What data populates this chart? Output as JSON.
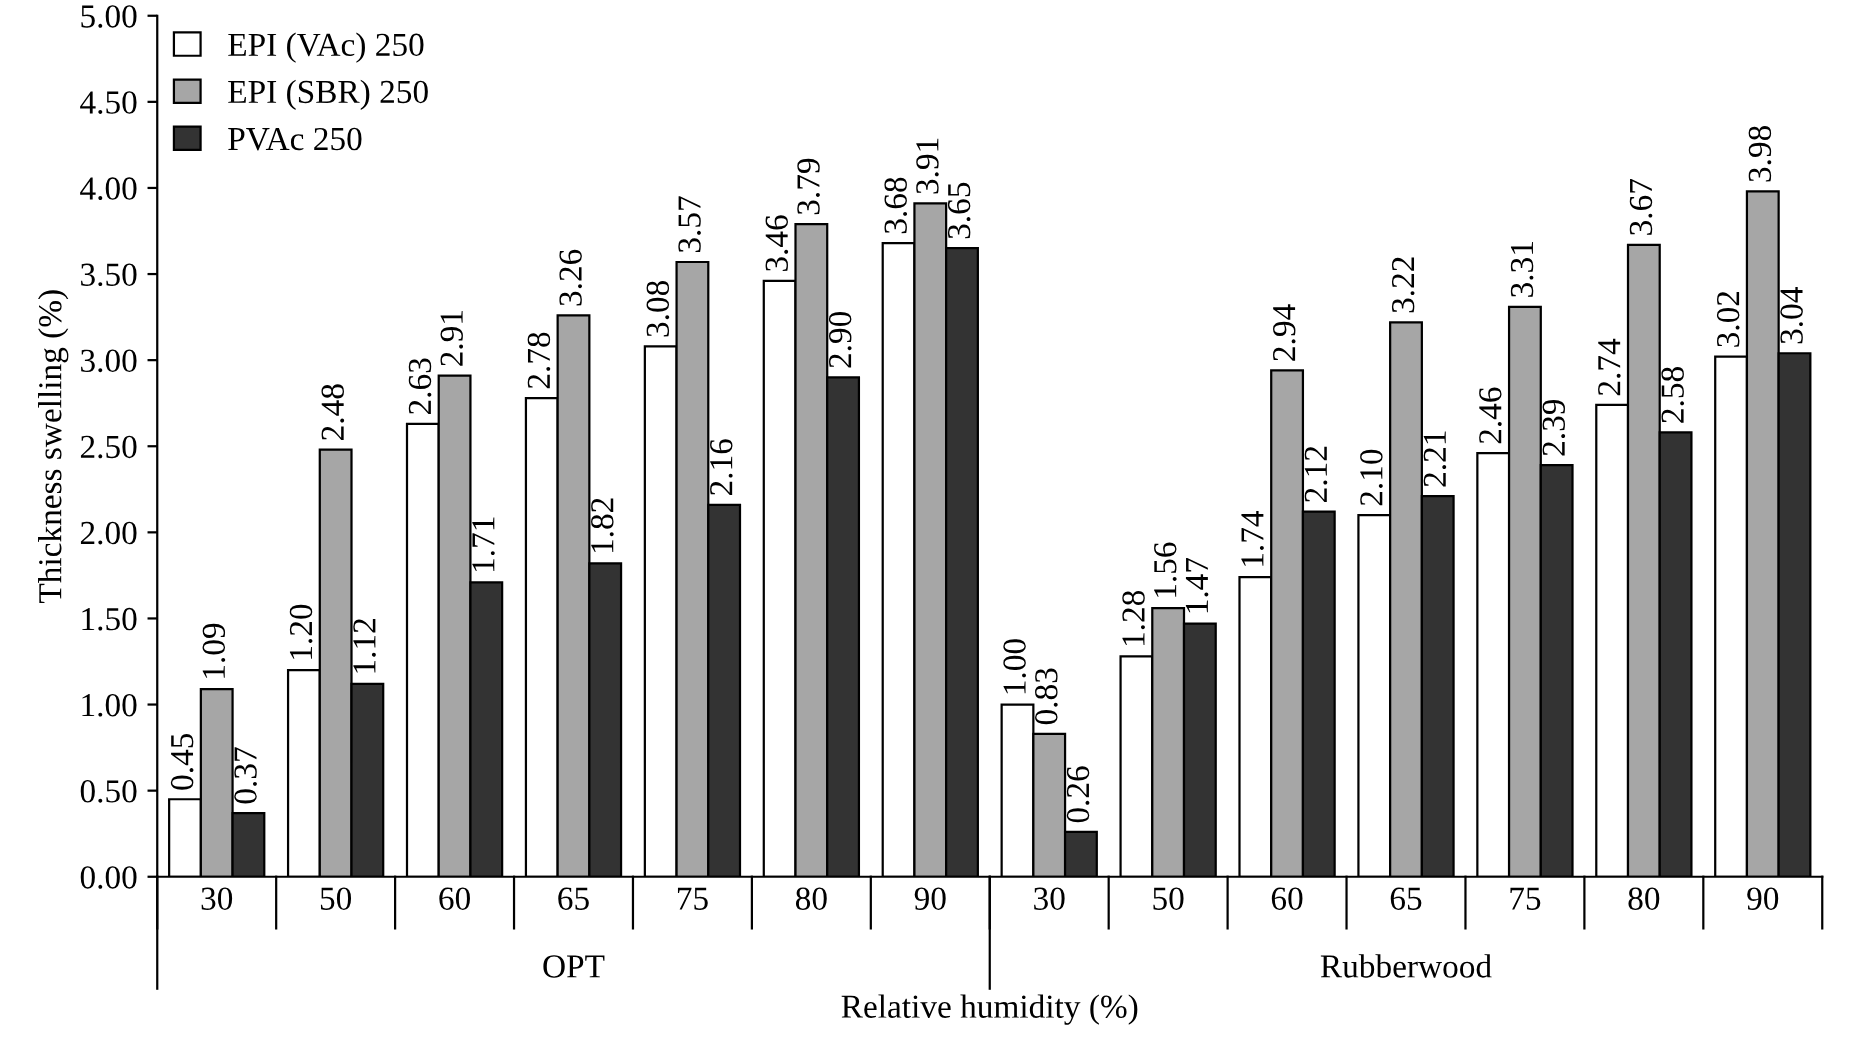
{
  "chart_data": {
    "type": "bar",
    "xlabel": "Relative humidity (%)",
    "ylabel": "Thickness swelling (%)",
    "categories": [
      "30",
      "50",
      "60",
      "65",
      "75",
      "80",
      "90",
      "30",
      "50",
      "60",
      "65",
      "75",
      "80",
      "90"
    ],
    "annotations": [
      "OPT",
      "Rubberwood"
    ],
    "series": [
      {
        "name": "EPI (VAc) 250",
        "color": "#ffffff",
        "values": [
          0.45,
          1.2,
          2.63,
          2.78,
          3.08,
          3.46,
          3.68,
          1.0,
          1.28,
          1.74,
          2.1,
          2.46,
          2.74,
          3.02
        ],
        "value_labels": [
          "0.45",
          "1.20",
          "2.63",
          "2.78",
          "3.08",
          "3.46",
          "3.68",
          "1.00",
          "1.28",
          "1.74",
          "2.10",
          "2.46",
          "2.74",
          "3.02"
        ]
      },
      {
        "name": "EPI (SBR) 250",
        "color": "#a6a6a6",
        "values": [
          1.09,
          2.48,
          2.91,
          3.26,
          3.57,
          3.79,
          3.91,
          0.83,
          1.56,
          2.94,
          3.22,
          3.31,
          3.67,
          3.98
        ],
        "value_labels": [
          "1.09",
          "2.48",
          "2.91",
          "3.26",
          "3.57",
          "3.79",
          "3.91",
          "0.83",
          "1.56",
          "2.94",
          "3.22",
          "3.31",
          "3.67",
          "3.98"
        ]
      },
      {
        "name": "PVAc 250",
        "color": "#333333",
        "values": [
          0.37,
          1.12,
          1.71,
          1.82,
          2.16,
          2.9,
          3.65,
          0.26,
          1.47,
          2.12,
          2.21,
          2.39,
          2.58,
          3.04
        ],
        "value_labels": [
          "0.37",
          "1.12",
          "1.71",
          "1.82",
          "2.16",
          "2.90",
          "3.65",
          "0.26",
          "1.47",
          "2.12",
          "2.21",
          "2.39",
          "2.58",
          "3.04"
        ]
      }
    ],
    "ylim": [
      0,
      5
    ],
    "yticks": [
      {
        "value": 0,
        "label": "0.00"
      },
      {
        "value": 0.5,
        "label": "0.50"
      },
      {
        "value": 1,
        "label": "1.00"
      },
      {
        "value": 1.5,
        "label": "1.50"
      },
      {
        "value": 2,
        "label": "2.00"
      },
      {
        "value": 2.5,
        "label": "2.50"
      },
      {
        "value": 3,
        "label": "3.00"
      },
      {
        "value": 3.5,
        "label": "3.50"
      },
      {
        "value": 4,
        "label": "4.00"
      },
      {
        "value": 4.5,
        "label": "4.50"
      },
      {
        "value": 5,
        "label": "5.00"
      }
    ],
    "legend": "top left",
    "grid": false
  }
}
